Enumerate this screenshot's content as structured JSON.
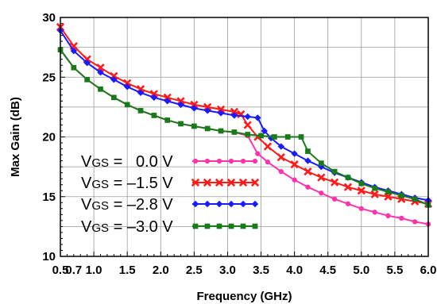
{
  "chart_data": {
    "type": "line",
    "title": "",
    "xlabel": "Frequency (GHz)",
    "ylabel": "Max Gain (dB)",
    "xlim": [
      0.5,
      6.0
    ],
    "ylim": [
      10,
      30
    ],
    "x_ticks": [
      "0.5",
      "0.7",
      "1.0",
      "1.5",
      "2.0",
      "2.5",
      "3.0",
      "3.5",
      "4.0",
      "4.5",
      "5.0",
      "5.5",
      "6.0"
    ],
    "y_ticks": [
      "10",
      "15",
      "20",
      "25",
      "30"
    ],
    "grid": true,
    "legend_position": "bottom-left",
    "series": [
      {
        "name": "VGS =   0.0 V",
        "label_main": "V",
        "label_sub": "GS",
        "label_rest": " =   0.0 V",
        "color": "#ff33aa",
        "marker": "circle",
        "x": [
          0.5,
          0.7,
          0.9,
          1.1,
          1.3,
          1.5,
          1.7,
          1.9,
          2.1,
          2.3,
          2.5,
          2.7,
          2.9,
          3.1,
          3.3,
          3.45,
          3.6,
          3.8,
          4.0,
          4.2,
          4.4,
          4.6,
          4.8,
          5.0,
          5.2,
          5.4,
          5.6,
          5.8,
          6.0
        ],
        "y": [
          27.3,
          25.8,
          24.8,
          24.0,
          23.3,
          22.7,
          22.2,
          21.8,
          21.4,
          21.1,
          20.9,
          20.7,
          20.5,
          20.4,
          20.1,
          18.6,
          17.9,
          17.1,
          16.4,
          15.8,
          15.3,
          14.8,
          14.4,
          14.0,
          13.7,
          13.4,
          13.2,
          12.9,
          12.7
        ]
      },
      {
        "name": "VGS = –1.5 V",
        "label_main": "V",
        "label_sub": "GS",
        "label_rest": " = –1.5 V",
        "color": "#ff1a1a",
        "marker": "x",
        "x": [
          0.5,
          0.7,
          0.9,
          1.1,
          1.3,
          1.5,
          1.7,
          1.9,
          2.1,
          2.3,
          2.5,
          2.7,
          2.9,
          3.1,
          3.2,
          3.3,
          3.45,
          3.6,
          3.8,
          4.0,
          4.2,
          4.4,
          4.6,
          4.8,
          5.0,
          5.2,
          5.4,
          5.6,
          5.8,
          6.0
        ],
        "y": [
          29.2,
          27.6,
          26.5,
          25.8,
          25.1,
          24.5,
          24.0,
          23.6,
          23.3,
          23.0,
          22.7,
          22.5,
          22.3,
          22.1,
          21.9,
          21.0,
          20.0,
          19.2,
          18.3,
          17.7,
          17.1,
          16.6,
          16.2,
          15.8,
          15.5,
          15.2,
          15.0,
          14.8,
          14.6,
          14.4
        ]
      },
      {
        "name": "VGS = –2.8 V",
        "label_main": "V",
        "label_sub": "GS",
        "label_rest": " = –2.8 V",
        "color": "#1a1aff",
        "marker": "diamond",
        "x": [
          0.5,
          0.7,
          0.9,
          1.1,
          1.3,
          1.5,
          1.7,
          1.9,
          2.1,
          2.3,
          2.5,
          2.7,
          2.9,
          3.1,
          3.3,
          3.45,
          3.55,
          3.65,
          3.8,
          4.0,
          4.2,
          4.4,
          4.6,
          4.8,
          5.0,
          5.2,
          5.4,
          5.6,
          5.8,
          6.0
        ],
        "y": [
          28.9,
          27.2,
          26.2,
          25.4,
          24.8,
          24.2,
          23.7,
          23.3,
          23.0,
          22.7,
          22.4,
          22.2,
          22.0,
          21.8,
          21.7,
          21.6,
          20.5,
          19.9,
          19.2,
          18.6,
          18.0,
          17.5,
          17.0,
          16.6,
          16.2,
          15.8,
          15.5,
          15.2,
          14.9,
          14.7
        ]
      },
      {
        "name": "VGS = –3.0 V",
        "label_main": "V",
        "label_sub": "GS",
        "label_rest": " = –3.0 V",
        "color": "#1a7a1a",
        "marker": "square",
        "x": [
          0.5,
          0.7,
          0.9,
          1.1,
          1.3,
          1.5,
          1.7,
          1.9,
          2.1,
          2.3,
          2.5,
          2.7,
          2.9,
          3.1,
          3.3,
          3.5,
          3.7,
          3.9,
          4.1,
          4.2,
          4.4,
          4.6,
          4.8,
          5.0,
          5.2,
          5.4,
          5.6,
          5.8,
          6.0
        ],
        "y": [
          27.3,
          25.8,
          24.8,
          24.0,
          23.3,
          22.7,
          22.2,
          21.8,
          21.4,
          21.1,
          20.9,
          20.7,
          20.5,
          20.4,
          20.2,
          20.1,
          20.0,
          20.0,
          20.0,
          18.8,
          17.8,
          17.1,
          16.6,
          16.1,
          15.7,
          15.4,
          15.1,
          14.8,
          14.3
        ]
      }
    ]
  }
}
